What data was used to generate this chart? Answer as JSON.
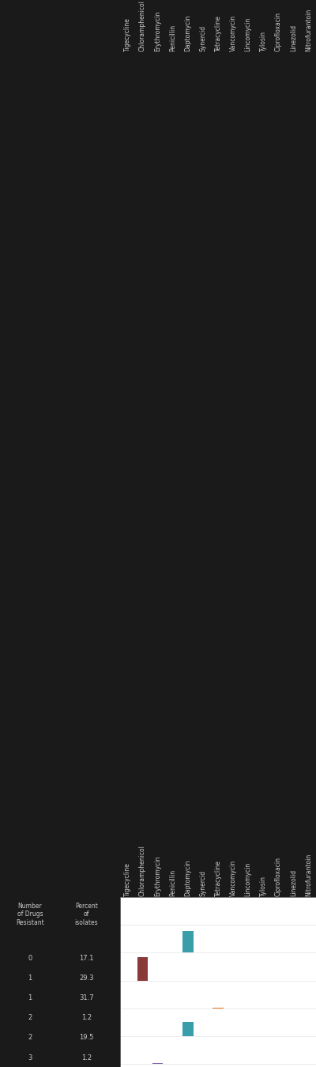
{
  "rows": [
    {
      "num_drugs": 0,
      "percent": 17.1,
      "drug": null,
      "color": null
    },
    {
      "num_drugs": 1,
      "percent": 29.3,
      "drug": "Daptomycin",
      "color": "#3a9eaa"
    },
    {
      "num_drugs": 1,
      "percent": 31.7,
      "drug": "Chloramphenicol",
      "color": "#8b3a3a"
    },
    {
      "num_drugs": 2,
      "percent": 1.2,
      "drug": "Tetracycline",
      "color": "#e07820"
    },
    {
      "num_drugs": 2,
      "percent": 19.5,
      "drug": "Daptomycin",
      "color": "#3a9eaa"
    },
    {
      "num_drugs": 3,
      "percent": 1.2,
      "drug": "Erythromycin",
      "color": "#7b5ea7"
    }
  ],
  "col_headers": [
    "Tigecycline",
    "Chloramphenicol",
    "Erythromycin",
    "Penicillin",
    "Daptomycin",
    "Synercid",
    "Tetracycline",
    "Vancomycin",
    "Lincomycin",
    "Tylosin",
    "Ciprofloxacin",
    "Linezolid",
    "Nitrofurantoin"
  ],
  "row_labels_drugs": [
    "0",
    "1",
    "1",
    "2",
    "2",
    "3"
  ],
  "row_labels_percent": [
    "17.1",
    "29.3",
    "31.7",
    "1.2",
    "19.5",
    "1.2"
  ],
  "num_cols": 13,
  "num_rows": 6,
  "col_drug_indices": {
    "Tigecycline": 0,
    "Chloramphenicol": 1,
    "Erythromycin": 2,
    "Penicillin": 3,
    "Daptomycin": 4,
    "Synercid": 5,
    "Tetracycline": 6,
    "Vancomycin": 7,
    "Lincomycin": 8,
    "Tylosin": 9,
    "Ciprofloxacin": 10,
    "Linezolid": 11,
    "Nitrofurantoin": 12
  },
  "bar_color_chloramphenicol": "#8b3a3a",
  "bar_color_daptomycin": "#3a9eaa",
  "bar_color_tetracycline": "#e07820",
  "bar_color_erythromycin": "#7b5ea7",
  "bg_color": "#1a1a1a",
  "plot_bg": "#ffffff",
  "text_color": "#cccccc",
  "header_fontsize": 5.5,
  "label_fontsize": 6.0,
  "grid_color": "#dddddd"
}
